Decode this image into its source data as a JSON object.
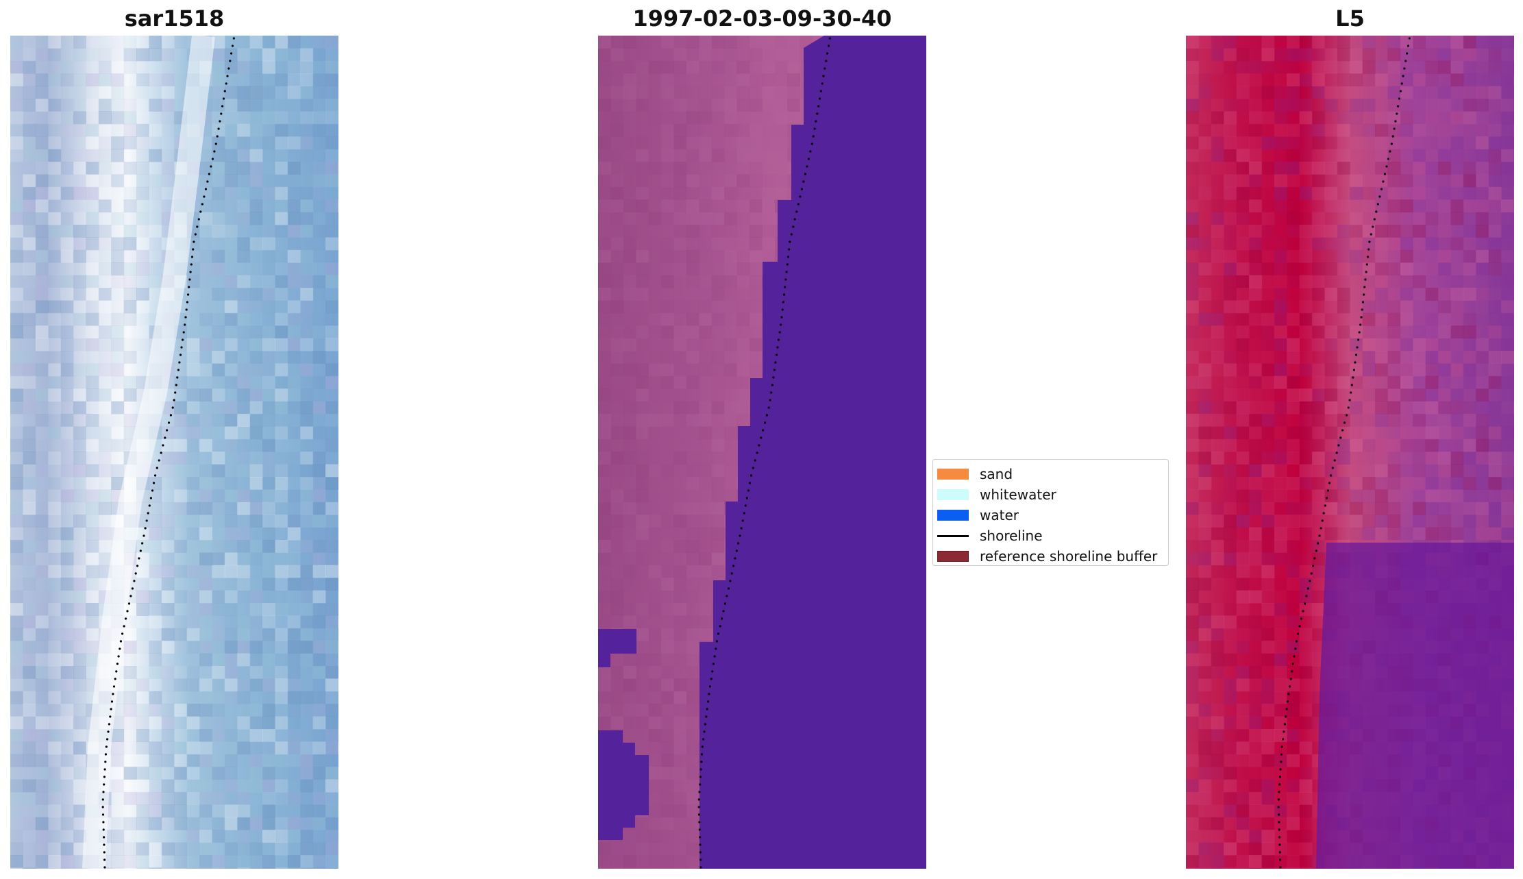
{
  "panels": [
    {
      "title": "sar1518"
    },
    {
      "title": "1997-02-03-09-30-40"
    },
    {
      "title": "L5"
    }
  ],
  "legend": {
    "items": [
      {
        "label": "sand",
        "color": "#f68a3e",
        "kind": "patch"
      },
      {
        "label": "whitewater",
        "color": "#ccfcfc",
        "kind": "patch"
      },
      {
        "label": "water",
        "color": "#0a5ef2",
        "kind": "patch"
      },
      {
        "label": "shoreline",
        "color": "#000000",
        "kind": "line"
      },
      {
        "label": "reference shoreline buffer",
        "color": "#8b2a33",
        "kind": "patch"
      }
    ]
  },
  "colors": {
    "classified_land": "#a3528c",
    "classified_water": "#54229a",
    "index_high": "#c0003a",
    "index_low": "#5a0a9a",
    "rgb_water": "#6ea6cf",
    "rgb_white": "#ffffff"
  }
}
